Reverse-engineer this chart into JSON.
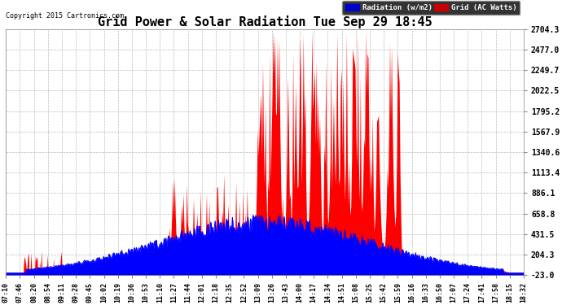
{
  "title": "Grid Power & Solar Radiation Tue Sep 29 18:45",
  "copyright": "Copyright 2015 Cartronics.com",
  "legend_radiation": "Radiation (w/m2)",
  "legend_grid": "Grid (AC Watts)",
  "yticks": [
    -23.0,
    204.3,
    431.5,
    658.8,
    886.1,
    1113.4,
    1340.6,
    1567.9,
    1795.2,
    2022.5,
    2249.7,
    2477.0,
    2704.3
  ],
  "ymin": -23.0,
  "ymax": 2704.3,
  "xtick_labels": [
    "07:10",
    "07:46",
    "08:20",
    "08:54",
    "09:11",
    "09:28",
    "09:45",
    "10:02",
    "10:19",
    "10:36",
    "10:53",
    "11:10",
    "11:27",
    "11:44",
    "12:01",
    "12:18",
    "12:35",
    "12:52",
    "13:09",
    "13:26",
    "13:43",
    "14:00",
    "14:17",
    "14:34",
    "14:51",
    "15:08",
    "15:25",
    "15:42",
    "15:59",
    "16:16",
    "16:33",
    "16:50",
    "17:07",
    "17:24",
    "17:41",
    "17:58",
    "18:15",
    "18:32"
  ],
  "bg_color": "#ffffff",
  "plot_bg_color": "#ffffff",
  "grid_color": "#aaaaaa",
  "radiation_color": "#0000ff",
  "grid_ac_color": "#ff0000",
  "title_color": "#000000",
  "tick_color": "#000000",
  "legend_radiation_bg": "#0000cc",
  "legend_grid_bg": "#cc0000",
  "copyright_color": "#000000"
}
